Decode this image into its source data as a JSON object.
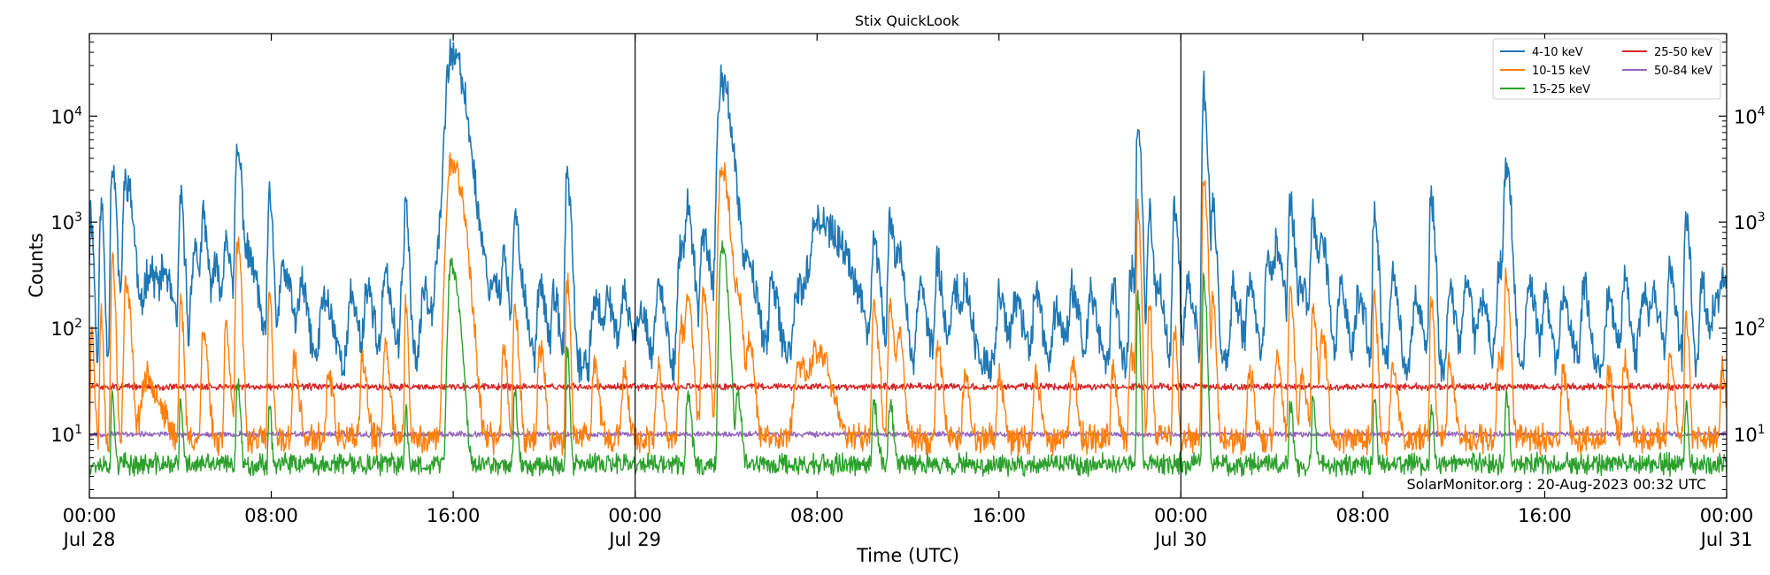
{
  "chart_data": {
    "type": "line",
    "title": "Stix QuickLook",
    "xlabel": "Time (UTC)",
    "ylabel": "Counts",
    "yscale": "log",
    "ylim": [
      2.5,
      60000
    ],
    "xlim": [
      0,
      72
    ],
    "x_unit": "hours since 00:00 Jul 28 (UTC)",
    "x_ticks": [
      {
        "x": 0,
        "time": "00:00",
        "date": "Jul 28"
      },
      {
        "x": 8,
        "time": "08:00",
        "date": ""
      },
      {
        "x": 16,
        "time": "16:00",
        "date": ""
      },
      {
        "x": 24,
        "time": "00:00",
        "date": "Jul 29"
      },
      {
        "x": 32,
        "time": "08:00",
        "date": ""
      },
      {
        "x": 40,
        "time": "16:00",
        "date": ""
      },
      {
        "x": 48,
        "time": "00:00",
        "date": "Jul 30"
      },
      {
        "x": 56,
        "time": "08:00",
        "date": ""
      },
      {
        "x": 64,
        "time": "16:00",
        "date": ""
      },
      {
        "x": 72,
        "time": "00:00",
        "date": "Jul 31"
      }
    ],
    "y_ticks": [
      {
        "value": 10,
        "base": "10",
        "exp": "1"
      },
      {
        "value": 100,
        "base": "10",
        "exp": "2"
      },
      {
        "value": 1000,
        "base": "10",
        "exp": "3"
      },
      {
        "value": 10000,
        "base": "10",
        "exp": "4"
      }
    ],
    "day_boundaries": [
      24,
      48
    ],
    "legend_position": "top-right",
    "credit": "SolarMonitor.org : 20-Aug-2023 00:32 UTC",
    "series": [
      {
        "name": "4-10 keV",
        "color": "#1f77b4",
        "baseline": 45,
        "noise": 0.28,
        "peaks": [
          [
            0.05,
            1200,
            0.06
          ],
          [
            0.5,
            1500,
            0.06
          ],
          [
            1.0,
            3500,
            0.08
          ],
          [
            1.6,
            2500,
            0.15
          ],
          [
            2.6,
            300,
            0.3
          ],
          [
            3.3,
            200,
            0.2
          ],
          [
            4.0,
            1500,
            0.08
          ],
          [
            4.6,
            500,
            0.15
          ],
          [
            5.0,
            900,
            0.1
          ],
          [
            5.5,
            300,
            0.2
          ],
          [
            6.0,
            700,
            0.1
          ],
          [
            6.5,
            4500,
            0.1
          ],
          [
            7.0,
            400,
            0.2
          ],
          [
            7.9,
            1500,
            0.08
          ],
          [
            8.5,
            300,
            0.2
          ],
          [
            9.3,
            200,
            0.15
          ],
          [
            10.3,
            150,
            0.2
          ],
          [
            11.5,
            150,
            0.15
          ],
          [
            12.2,
            200,
            0.15
          ],
          [
            13.0,
            250,
            0.15
          ],
          [
            13.8,
            400,
            0.12
          ],
          [
            13.9,
            1300,
            0.06
          ],
          [
            14.7,
            200,
            0.15
          ],
          [
            15.5,
            1000,
            0.3
          ],
          [
            15.9,
            38000,
            0.25
          ],
          [
            16.3,
            3000,
            0.3
          ],
          [
            17.3,
            150,
            0.2
          ],
          [
            17.8,
            200,
            0.15
          ],
          [
            18.2,
            400,
            0.1
          ],
          [
            18.7,
            1000,
            0.1
          ],
          [
            19.0,
            150,
            0.15
          ],
          [
            19.8,
            250,
            0.12
          ],
          [
            20.4,
            150,
            0.12
          ],
          [
            21.0,
            2800,
            0.08
          ],
          [
            22.2,
            150,
            0.15
          ],
          [
            22.8,
            150,
            0.15
          ],
          [
            23.5,
            150,
            0.15
          ],
          [
            24.2,
            120,
            0.15
          ],
          [
            25.0,
            200,
            0.15
          ],
          [
            26.0,
            500,
            0.15
          ],
          [
            26.3,
            1100,
            0.12
          ],
          [
            27.0,
            700,
            0.15
          ],
          [
            27.8,
            23000,
            0.18
          ],
          [
            28.5,
            600,
            0.15
          ],
          [
            29.0,
            300,
            0.2
          ],
          [
            30.0,
            200,
            0.15
          ],
          [
            31.2,
            200,
            0.3
          ],
          [
            32.0,
            1000,
            0.35
          ],
          [
            32.8,
            300,
            0.4
          ],
          [
            33.3,
            150,
            0.3
          ],
          [
            34.5,
            600,
            0.12
          ],
          [
            35.2,
            1000,
            0.1
          ],
          [
            35.6,
            500,
            0.12
          ],
          [
            36.5,
            200,
            0.15
          ],
          [
            37.3,
            350,
            0.12
          ],
          [
            38.0,
            200,
            0.15
          ],
          [
            38.5,
            180,
            0.15
          ],
          [
            40.0,
            150,
            0.15
          ],
          [
            40.7,
            120,
            0.2
          ],
          [
            41.6,
            150,
            0.15
          ],
          [
            42.5,
            100,
            0.2
          ],
          [
            43.2,
            200,
            0.15
          ],
          [
            44.0,
            150,
            0.15
          ],
          [
            45.0,
            200,
            0.12
          ],
          [
            45.8,
            300,
            0.1
          ],
          [
            46.1,
            8000,
            0.07
          ],
          [
            46.6,
            1200,
            0.08
          ],
          [
            47.0,
            200,
            0.12
          ],
          [
            47.7,
            1600,
            0.08
          ],
          [
            48.3,
            200,
            0.15
          ],
          [
            49.0,
            18000,
            0.07
          ],
          [
            49.4,
            1500,
            0.08
          ],
          [
            50.3,
            180,
            0.15
          ],
          [
            51.0,
            200,
            0.15
          ],
          [
            51.8,
            400,
            0.12
          ],
          [
            52.2,
            550,
            0.15
          ],
          [
            52.8,
            1300,
            0.1
          ],
          [
            53.3,
            200,
            0.15
          ],
          [
            53.8,
            1000,
            0.1
          ],
          [
            54.2,
            600,
            0.12
          ],
          [
            55.0,
            200,
            0.15
          ],
          [
            55.8,
            150,
            0.15
          ],
          [
            56.5,
            1300,
            0.08
          ],
          [
            57.3,
            300,
            0.12
          ],
          [
            58.3,
            150,
            0.15
          ],
          [
            59.0,
            1600,
            0.08
          ],
          [
            59.8,
            200,
            0.12
          ],
          [
            60.5,
            200,
            0.15
          ],
          [
            61.2,
            150,
            0.15
          ],
          [
            62.0,
            400,
            0.12
          ],
          [
            62.3,
            3500,
            0.1
          ],
          [
            63.3,
            200,
            0.15
          ],
          [
            64.0,
            150,
            0.12
          ],
          [
            64.8,
            150,
            0.15
          ],
          [
            65.7,
            200,
            0.12
          ],
          [
            66.8,
            150,
            0.15
          ],
          [
            67.5,
            250,
            0.12
          ],
          [
            68.3,
            200,
            0.15
          ],
          [
            68.8,
            150,
            0.15
          ],
          [
            69.5,
            300,
            0.12
          ],
          [
            70.2,
            1300,
            0.08
          ],
          [
            70.9,
            200,
            0.12
          ],
          [
            71.5,
            150,
            0.2
          ],
          [
            71.8,
            200,
            0.12
          ]
        ]
      },
      {
        "name": "10-15 keV",
        "color": "#ff7f0e",
        "baseline": 9,
        "noise": 0.22,
        "peaks": [
          [
            0.1,
            100,
            0.05
          ],
          [
            0.5,
            140,
            0.05
          ],
          [
            1.0,
            450,
            0.06
          ],
          [
            1.6,
            250,
            0.1
          ],
          [
            2.5,
            25,
            0.3
          ],
          [
            4.0,
            200,
            0.06
          ],
          [
            5.0,
            80,
            0.1
          ],
          [
            6.0,
            100,
            0.08
          ],
          [
            6.5,
            600,
            0.08
          ],
          [
            7.9,
            200,
            0.06
          ],
          [
            9.0,
            40,
            0.1
          ],
          [
            10.5,
            30,
            0.1
          ],
          [
            12.0,
            40,
            0.1
          ],
          [
            13.0,
            60,
            0.1
          ],
          [
            13.9,
            180,
            0.05
          ],
          [
            15.9,
            3800,
            0.22
          ],
          [
            16.3,
            300,
            0.2
          ],
          [
            18.2,
            60,
            0.08
          ],
          [
            18.7,
            150,
            0.08
          ],
          [
            19.8,
            60,
            0.1
          ],
          [
            21.0,
            300,
            0.06
          ],
          [
            22.2,
            40,
            0.1
          ],
          [
            23.5,
            30,
            0.1
          ],
          [
            25.0,
            30,
            0.1
          ],
          [
            26.0,
            100,
            0.1
          ],
          [
            26.3,
            200,
            0.1
          ],
          [
            27.0,
            200,
            0.1
          ],
          [
            27.8,
            3500,
            0.15
          ],
          [
            28.5,
            200,
            0.12
          ],
          [
            29.0,
            60,
            0.12
          ],
          [
            31.2,
            40,
            0.25
          ],
          [
            32.0,
            50,
            0.3
          ],
          [
            34.5,
            150,
            0.1
          ],
          [
            35.2,
            150,
            0.1
          ],
          [
            35.6,
            80,
            0.1
          ],
          [
            37.3,
            60,
            0.1
          ],
          [
            38.5,
            30,
            0.1
          ],
          [
            40.0,
            30,
            0.1
          ],
          [
            41.6,
            30,
            0.1
          ],
          [
            43.2,
            40,
            0.1
          ],
          [
            45.0,
            30,
            0.1
          ],
          [
            45.8,
            50,
            0.1
          ],
          [
            46.1,
            1300,
            0.06
          ],
          [
            46.6,
            150,
            0.06
          ],
          [
            47.7,
            100,
            0.06
          ],
          [
            49.0,
            2500,
            0.07
          ],
          [
            49.4,
            200,
            0.06
          ],
          [
            51.0,
            30,
            0.1
          ],
          [
            52.2,
            50,
            0.1
          ],
          [
            52.8,
            200,
            0.08
          ],
          [
            53.3,
            30,
            0.1
          ],
          [
            53.8,
            150,
            0.08
          ],
          [
            54.2,
            80,
            0.1
          ],
          [
            56.5,
            200,
            0.06
          ],
          [
            57.3,
            40,
            0.1
          ],
          [
            59.0,
            200,
            0.06
          ],
          [
            59.8,
            40,
            0.1
          ],
          [
            62.0,
            50,
            0.1
          ],
          [
            62.3,
            300,
            0.08
          ],
          [
            64.8,
            30,
            0.1
          ],
          [
            66.8,
            30,
            0.1
          ],
          [
            67.5,
            40,
            0.1
          ],
          [
            69.5,
            40,
            0.1
          ],
          [
            70.2,
            150,
            0.06
          ],
          [
            71.8,
            30,
            0.1
          ]
        ]
      },
      {
        "name": "15-25 keV",
        "color": "#2ca02c",
        "baseline": 5.2,
        "noise": 0.16,
        "peaks": [
          [
            1.0,
            20,
            0.05
          ],
          [
            4.0,
            15,
            0.05
          ],
          [
            6.5,
            30,
            0.06
          ],
          [
            7.9,
            15,
            0.05
          ],
          [
            13.9,
            12,
            0.05
          ],
          [
            15.9,
            400,
            0.15
          ],
          [
            16.3,
            30,
            0.1
          ],
          [
            18.7,
            20,
            0.06
          ],
          [
            21.0,
            60,
            0.05
          ],
          [
            26.3,
            20,
            0.08
          ],
          [
            27.8,
            600,
            0.12
          ],
          [
            28.5,
            20,
            0.08
          ],
          [
            34.5,
            15,
            0.08
          ],
          [
            35.2,
            15,
            0.08
          ],
          [
            46.1,
            200,
            0.05
          ],
          [
            49.0,
            300,
            0.06
          ],
          [
            52.8,
            15,
            0.06
          ],
          [
            53.8,
            15,
            0.06
          ],
          [
            56.5,
            20,
            0.05
          ],
          [
            59.0,
            15,
            0.05
          ],
          [
            62.3,
            20,
            0.06
          ],
          [
            70.2,
            15,
            0.05
          ]
        ]
      },
      {
        "name": "25-50 keV",
        "color": "#d62728",
        "baseline": 28,
        "noise": 0.05,
        "peaks": []
      },
      {
        "name": "50-84 keV",
        "color": "#9467bd",
        "baseline": 10,
        "noise": 0.04,
        "peaks": []
      }
    ]
  }
}
